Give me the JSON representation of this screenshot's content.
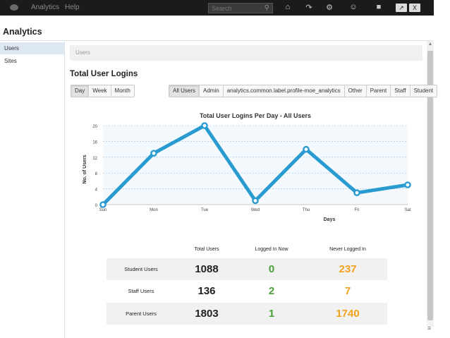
{
  "topbar": {
    "nav": [
      "Analytics",
      "Help"
    ],
    "search_placeholder": "Search",
    "icons": [
      "home-icon",
      "share-icon",
      "gear-icon",
      "people-icon",
      "chat-icon"
    ],
    "buttons": [
      "↗",
      "X"
    ]
  },
  "app_title": "Analytics",
  "sidebar": {
    "items": [
      {
        "label": "Users",
        "active": true
      },
      {
        "label": "Sites",
        "active": false
      }
    ]
  },
  "breadcrumb": "Users",
  "section_title": "Total User Logins",
  "period_buttons": [
    {
      "label": "Day",
      "active": true
    },
    {
      "label": "Week",
      "active": false
    },
    {
      "label": "Month",
      "active": false
    }
  ],
  "role_buttons": [
    {
      "label": "All Users",
      "active": true
    },
    {
      "label": "Admin",
      "active": false
    },
    {
      "label": "analytics.common.label.profile-moe_analytics",
      "active": false
    },
    {
      "label": "Other",
      "active": false
    },
    {
      "label": "Parent",
      "active": false
    },
    {
      "label": "Staff",
      "active": false
    },
    {
      "label": "Student",
      "active": false
    }
  ],
  "chart_data": {
    "type": "line",
    "title": "Total User Logins Per Day - All Users",
    "xlabel": "Days",
    "ylabel": "No. of Users",
    "categories": [
      "Sun",
      "Mon",
      "Tue",
      "Wed",
      "Thu",
      "Fri",
      "Sat"
    ],
    "series": [
      {
        "values": [
          0,
          13,
          20,
          1,
          14,
          3,
          5
        ]
      }
    ],
    "ylim": [
      0,
      20
    ],
    "yticks": [
      0,
      4,
      8,
      12,
      16,
      20
    ],
    "grid": true,
    "color": "#2a9bd0"
  },
  "stats": {
    "headers": [
      "Total Users",
      "Logged In Now",
      "Never Logged In"
    ],
    "rows": [
      {
        "label": "Student Users",
        "total": "1088",
        "now": "0",
        "never": "237"
      },
      {
        "label": "Staff Users",
        "total": "136",
        "now": "2",
        "never": "7"
      },
      {
        "label": "Parent Users",
        "total": "1803",
        "now": "1",
        "never": "1740"
      }
    ]
  }
}
